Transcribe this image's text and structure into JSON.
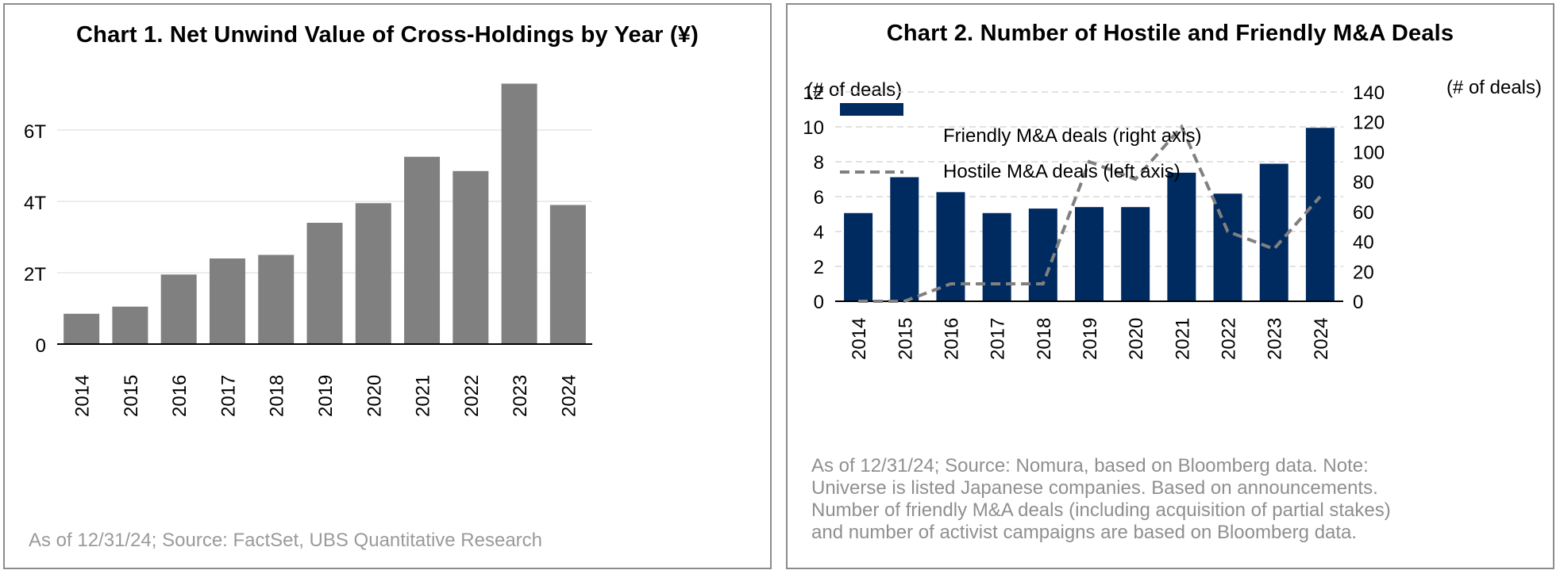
{
  "chart_data": [
    {
      "type": "bar",
      "title": "Chart 1. Net Unwind Value of Cross-Holdings by Year (¥)",
      "categories": [
        "2014",
        "2015",
        "2016",
        "2017",
        "2018",
        "2019",
        "2020",
        "2021",
        "2022",
        "2023",
        "2024"
      ],
      "values": [
        0.85,
        1.05,
        1.95,
        2.4,
        2.5,
        3.4,
        3.95,
        5.25,
        4.85,
        7.3,
        3.9
      ],
      "value_unit": "trillion yen",
      "yticks": [
        {
          "value": 0,
          "label": "0"
        },
        {
          "value": 2,
          "label": "2T"
        },
        {
          "value": 4,
          "label": "4T"
        },
        {
          "value": 6,
          "label": "6T"
        }
      ],
      "ylim": [
        0,
        7.5
      ],
      "grid": true,
      "bar_color": "#808080",
      "source": "As of 12/31/24; Source: FactSet, UBS Quantitative Research"
    },
    {
      "type": "bar",
      "title": "Chart 2. Number of Hostile and Friendly M&A Deals",
      "categories": [
        "2014",
        "2015",
        "2016",
        "2017",
        "2018",
        "2019",
        "2020",
        "2021",
        "2022",
        "2023",
        "2024"
      ],
      "series": [
        {
          "name": "Friendly M&A deals (right axis)",
          "type": "bar",
          "axis": "right",
          "values": [
            59,
            83,
            73,
            59,
            62,
            63,
            63,
            86,
            72,
            92,
            116
          ],
          "color": "#002B60"
        },
        {
          "name": "Hostile M&A deals (left axis)",
          "type": "line",
          "axis": "left",
          "style": "dashed",
          "values": [
            0,
            0,
            1,
            1,
            1,
            8,
            7,
            10,
            4,
            3,
            6
          ],
          "color": "#808080"
        }
      ],
      "left_axis": {
        "label": "(# of deals)",
        "ylim": [
          0,
          12
        ],
        "ticks": [
          0,
          2,
          4,
          6,
          8,
          10,
          12
        ]
      },
      "right_axis": {
        "label": "(# of deals)",
        "ylim": [
          0,
          140
        ],
        "ticks": [
          0,
          20,
          40,
          60,
          80,
          100,
          120,
          140
        ]
      },
      "legend": "top-left",
      "grid": true,
      "source_lines": [
        "As of 12/31/24; Source: Nomura, based on Bloomberg data. Note:",
        "Universe is listed Japanese companies. Based on announcements.",
        "Number of friendly M&A deals (including acquisition of partial stakes)",
        "and number of activist campaigns are based on Bloomberg data."
      ]
    }
  ]
}
